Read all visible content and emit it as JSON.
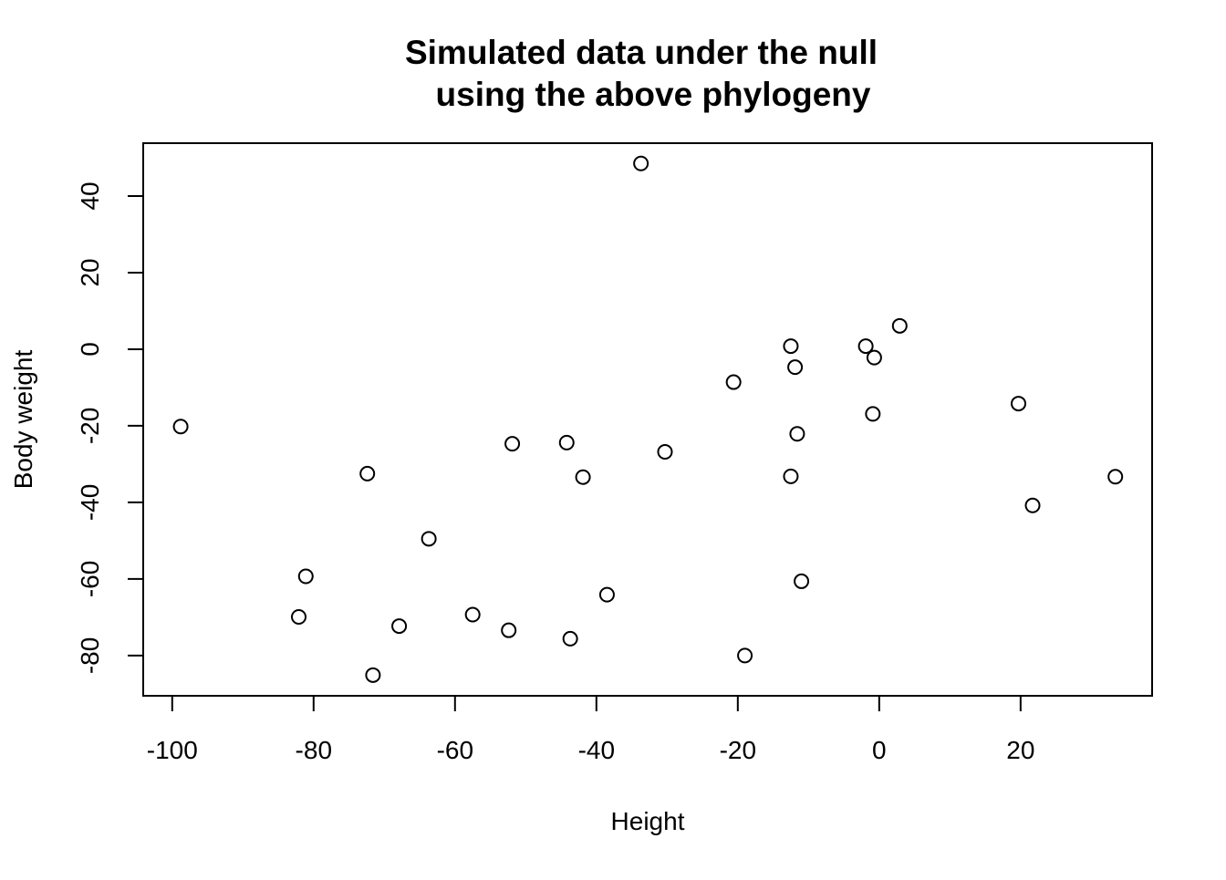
{
  "chart_data": {
    "type": "scatter",
    "title_lines": [
      "Simulated data under the null",
      "using the above phylogeny"
    ],
    "xlabel": "Height",
    "ylabel": "Body weight",
    "xlim": [
      -104.1,
      38.6
    ],
    "ylim": [
      -90.5,
      53.8
    ],
    "x_ticks": [
      -100,
      -80,
      -60,
      -40,
      -20,
      0,
      20
    ],
    "x_tick_labels": [
      "-100",
      "-80",
      "-60",
      "-40",
      "-20",
      "0",
      "20"
    ],
    "y_ticks": [
      -80,
      -60,
      -40,
      -20,
      0,
      20,
      40
    ],
    "y_tick_labels": [
      "-80",
      "-60",
      "-40",
      "-20",
      "0",
      "20",
      "40"
    ],
    "grid": false,
    "legend": "none",
    "marker": "open-circle",
    "marker_color": "#000000",
    "points": [
      {
        "x": -33.7,
        "y": 48.5
      },
      {
        "x": 2.9,
        "y": 6.1
      },
      {
        "x": -12.5,
        "y": 0.8
      },
      {
        "x": -1.9,
        "y": 0.8
      },
      {
        "x": -0.7,
        "y": -2.2
      },
      {
        "x": -11.9,
        "y": -4.7
      },
      {
        "x": -20.6,
        "y": -8.6
      },
      {
        "x": 19.7,
        "y": -14.2
      },
      {
        "x": -0.9,
        "y": -16.9
      },
      {
        "x": -11.6,
        "y": -22.1
      },
      {
        "x": -98.8,
        "y": -20.2
      },
      {
        "x": -51.9,
        "y": -24.7
      },
      {
        "x": -44.2,
        "y": -24.4
      },
      {
        "x": -30.3,
        "y": -26.8
      },
      {
        "x": -72.4,
        "y": -32.5
      },
      {
        "x": -41.9,
        "y": -33.4
      },
      {
        "x": -12.5,
        "y": -33.2
      },
      {
        "x": 33.4,
        "y": -33.3
      },
      {
        "x": 21.7,
        "y": -40.8
      },
      {
        "x": -63.7,
        "y": -49.5
      },
      {
        "x": -81.1,
        "y": -59.3
      },
      {
        "x": -11.0,
        "y": -60.6
      },
      {
        "x": -38.5,
        "y": -64.1
      },
      {
        "x": -82.1,
        "y": -69.9
      },
      {
        "x": -57.5,
        "y": -69.3
      },
      {
        "x": -67.9,
        "y": -72.3
      },
      {
        "x": -52.4,
        "y": -73.4
      },
      {
        "x": -43.7,
        "y": -75.6
      },
      {
        "x": -19.0,
        "y": -80.0
      },
      {
        "x": -71.6,
        "y": -85.1
      }
    ]
  }
}
